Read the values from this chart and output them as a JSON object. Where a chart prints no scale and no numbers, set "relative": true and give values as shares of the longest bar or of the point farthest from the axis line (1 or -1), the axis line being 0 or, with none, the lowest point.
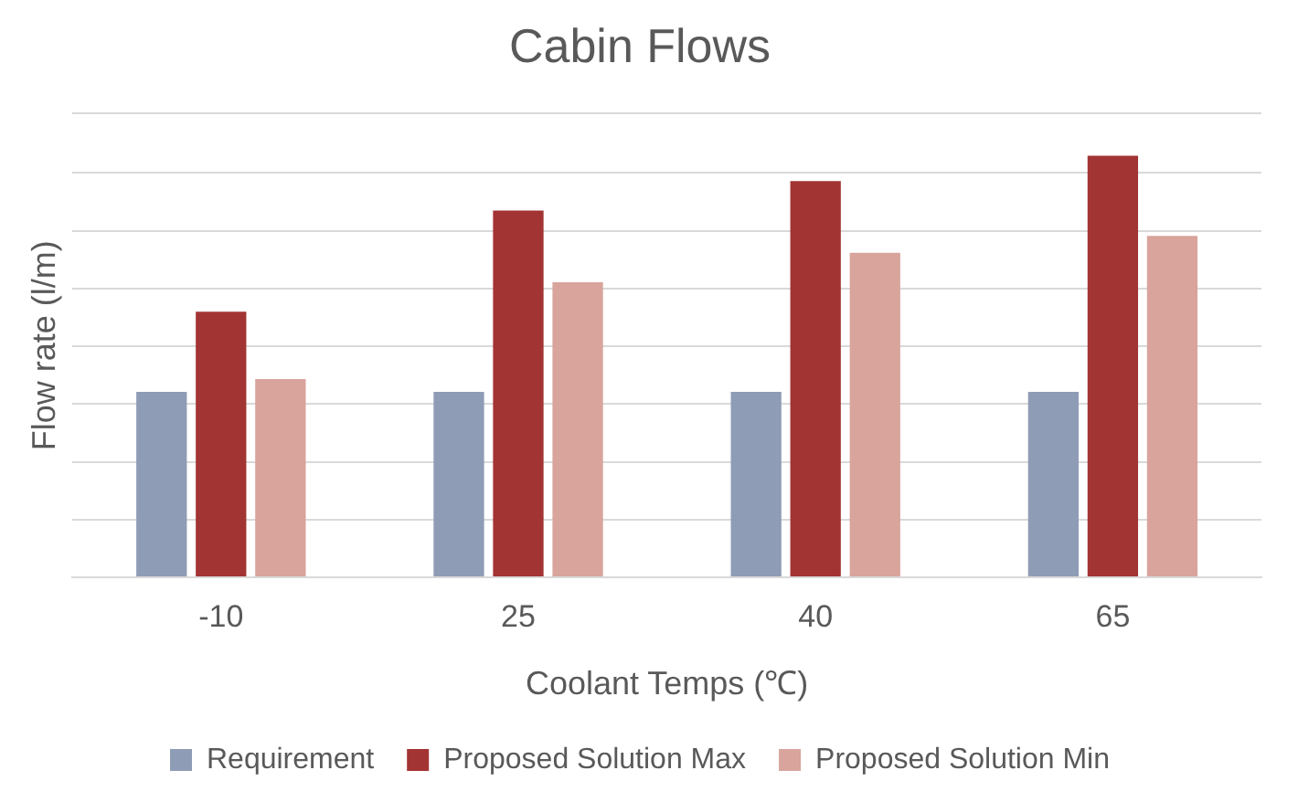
{
  "chart_data": {
    "type": "bar",
    "title": "Cabin Flows",
    "xlabel": "Coolant Temps (℃)",
    "ylabel": "Flow rate (l/m)",
    "categories": [
      "-10",
      "25",
      "40",
      "65"
    ],
    "relative": true,
    "grid": "y",
    "legend": "bottom",
    "series": [
      {
        "name": "Requirement",
        "color": "#8e9cb5",
        "values": [
          0.44,
          0.44,
          0.44,
          0.44
        ]
      },
      {
        "name": "Proposed Solution Max",
        "color": "#a33434",
        "values": [
          0.63,
          0.87,
          0.94,
          1
        ]
      },
      {
        "name": "Proposed Solution Min",
        "color": "#d8a49c",
        "values": [
          0.47,
          0.7,
          0.77,
          0.81
        ]
      }
    ]
  }
}
